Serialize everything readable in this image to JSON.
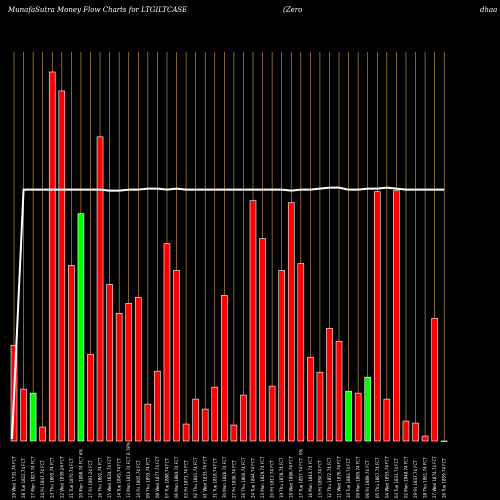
{
  "header": {
    "title": "MunafaSutra  Money Flow  Charts for LTGILTCASE",
    "subtitle": "(Zero",
    "right_text": "dhaa"
  },
  "colors": {
    "background": "#000000",
    "bar_down": "#ff0000",
    "bar_up": "#00ff00",
    "gridline": "#d2a65a",
    "line": "#ffffff"
  },
  "chart_data": {
    "type": "bar",
    "grid": true,
    "legend": "none",
    "categories": [
      "Wed 29 Jan",
      "Tue 28 Jan",
      "Mon 27 Jan",
      "Fri 24 Jan",
      "Thu 23 Jan",
      "Wed 22 Jan",
      "Tue 21 Jan",
      "Mon 20 Jan",
      "Fri 17 Jan",
      "Thu 16 Jan",
      "Wed 15 Jan",
      "Tue 14 Jan",
      "Mon 13 Jan",
      "Fri 10 Jan",
      "Thu 09 Jan",
      "Wed 08 Jan",
      "Tue 07 Jan",
      "Mon 06 Jan",
      "Fri 03 Jan",
      "Thu 02 Jan",
      "Wed 01 Jan",
      "Tue 31 Dec",
      "Mon 30 Dec",
      "Fri 27 Dec",
      "Thu 26 Dec",
      "Tue 24 Dec",
      "Mon 23 Dec",
      "Fri 20 Dec",
      "Thu 19 Dec",
      "Wed 18 Dec",
      "Tue 17 Dec",
      "Mon 16 Dec",
      "Fri 13 Dec",
      "Thu 12 Dec",
      "Wed 11 Dec",
      "Tue 10 Dec",
      "Mon 09 Dec",
      "Fri 06 Dec",
      "Thu 05 Dec",
      "Wed 04 Dec",
      "Tue 03 Dec",
      "Mon 02 Dec",
      "Fri 29 Nov",
      "Thu 28 Nov",
      "Wed 27 Nov",
      "Tue 26 Nov"
    ],
    "tick_labels": [
      "29 Wed 1732.74 FCT",
      "28 Tue 1822.74 FCT",
      "27 Mon 1827.74 FCT",
      "24 Fri 1847.74 FCT",
      "23 Thu 1865.74 FCT",
      "22 Wed 1839.24 FCT",
      "21 Tue 1870.74 FCT",
      "20 Mon 1898.74 FCT",
      "17 Fri 1891.24 FCT",
      "16 Thu 1862.74 FCT",
      "15 Wed 1824.74 FCT",
      "14 Tue 1845.74 FCT",
      "13 Mon 1813.74 FCT",
      "10 Fri 1805.74 FCT",
      "09 Thu 1855.74 FCT",
      "08 Wed 1877.74 FCT",
      "07 Tue 1888.74 FCT",
      "06 Mon 1884.74 FCT",
      "03 Fri 1873.74 FCT",
      "02 Thu 1841.74 FCT",
      "01 Wed 1833.74 FCT",
      "31 Tue 1818.74 FCT",
      "30 Mon 1826.74 FCT",
      "27 Fri 1836.74 FCT",
      "26 Thu 1860.74 FCT",
      "24 Tue 1844.74 FCT",
      "23 Mon 1829.74 FCT",
      "20 Fri 1811.74 FCT",
      "19 Thu 1878.74 FCT",
      "18 Wed 1866.74 FCT",
      "17 Tue 1857.74 FCT",
      "16 Mon 1843.74 FCT",
      "13 Fri 1850.74 FCT",
      "12 Thu 1872.74 FCT",
      "11 Wed 1876.74 FCT",
      "10 Tue 1883.74 FCT",
      "09 Mon 1895.74 FCT",
      "06 Fri 1889.74 FCT",
      "05 Thu 1867.74 FCT",
      "04 Wed 1853.74 FCT",
      "03 Tue 1831.74 FCT",
      "02 Mon 1848.74 FCT",
      "29 Fri 1837.74 FCT",
      "28 Thu 1861.74 FCT",
      "27 Wed 1874.74 FCT",
      "26 Tue 1859.74 FCT"
    ],
    "series": [
      {
        "values": [
          96,
          52,
          48,
          14,
          370,
          351,
          176,
          228,
          87,
          305,
          157,
          128,
          138,
          144,
          37,
          70,
          198,
          171,
          17,
          42,
          32,
          54,
          146,
          16,
          46,
          241,
          203,
          55,
          171,
          239,
          178,
          84,
          69,
          113,
          100,
          50,
          48,
          64,
          250,
          42,
          251,
          20,
          18,
          5,
          123,
          0
        ],
        "direction": [
          "down",
          "down",
          "up",
          "down",
          "down",
          "down",
          "down",
          "up",
          "down",
          "down",
          "down",
          "down",
          "down",
          "down",
          "down",
          "down",
          "down",
          "down",
          "down",
          "down",
          "down",
          "down",
          "down",
          "down",
          "down",
          "down",
          "down",
          "down",
          "down",
          "down",
          "down",
          "down",
          "down",
          "down",
          "down",
          "up",
          "down",
          "up",
          "down",
          "down",
          "down",
          "down",
          "down",
          "down",
          "down",
          "down"
        ]
      }
    ],
    "line_values": [
      2,
      252,
      252,
      252,
      252,
      252,
      252,
      252,
      252,
      252,
      251,
      251,
      252,
      252,
      253,
      253,
      252,
      253,
      252,
      252,
      252,
      252,
      252,
      252,
      252,
      252,
      252,
      252,
      252,
      251,
      252,
      252,
      253,
      254,
      254,
      252,
      252,
      253,
      253,
      254,
      253,
      252,
      252,
      252,
      252,
      252
    ],
    "markers": [
      {
        "index": 7,
        "text": "6%"
      },
      {
        "index": 12,
        "text": "6.78%"
      },
      {
        "index": 30,
        "text": "0%"
      }
    ],
    "ylim": [
      0,
      372
    ]
  }
}
